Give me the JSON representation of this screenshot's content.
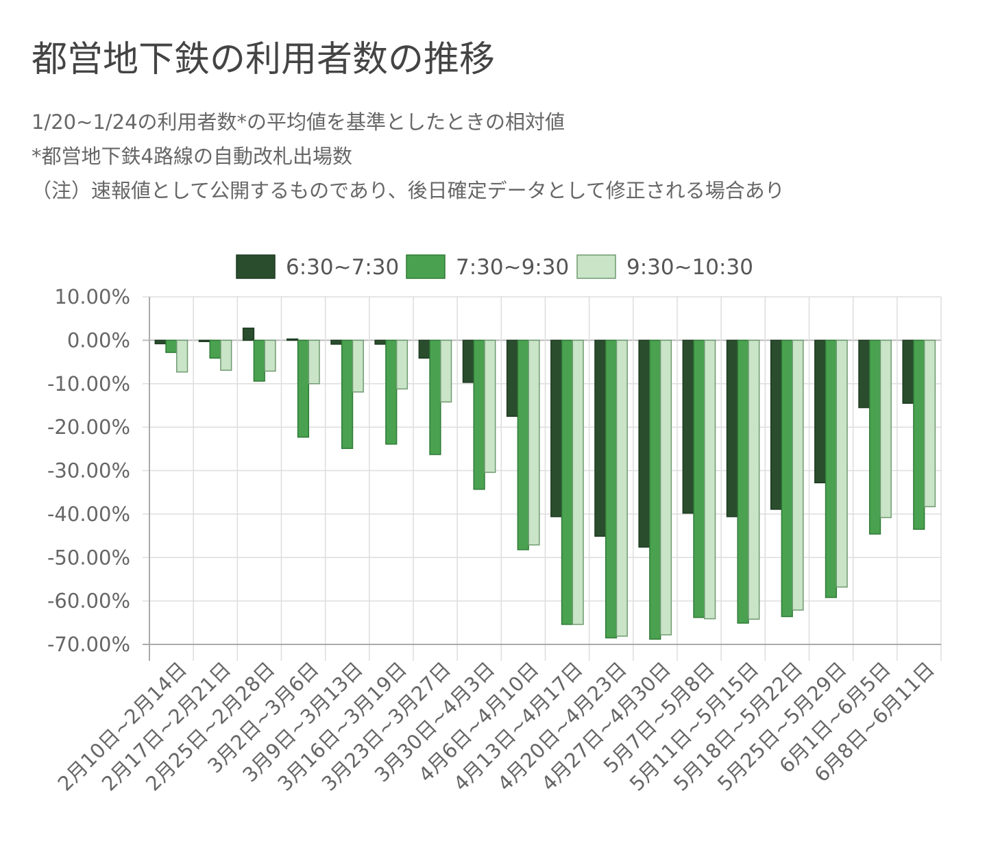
{
  "header": {
    "title": "都営地下鉄の利用者数の推移",
    "notes": [
      "1/20~1/24の利用者数*の平均値を基準としたときの相対値",
      "*都営地下鉄4路線の自動改札出場数",
      "（注）速報値として公開するものであり、後日確定データとして修正される場合あり"
    ]
  },
  "colors": {
    "series": [
      "#2a4d2e",
      "#4aa251",
      "#c9e4c7"
    ],
    "stroke": [
      "#1d3a21",
      "#2f7a35",
      "#6e9a6f"
    ],
    "grid": "#dddddd",
    "axis": "#aaaaaa",
    "zero": "#bbbbbb"
  },
  "chart_data": {
    "type": "bar",
    "title": "",
    "ylim": [
      -70,
      10
    ],
    "y_ticks": [
      "10.00%",
      "0.00%",
      "-10.00%",
      "-20.00%",
      "-30.00%",
      "-40.00%",
      "-50.00%",
      "-60.00%",
      "-70.00%"
    ],
    "categories": [
      "2月10日~2月14日",
      "2月17日~2月21日",
      "2月25日~2月28日",
      "3月2日~3月6日",
      "3月9日~3月13日",
      "3月16日~3月19日",
      "3月23日~3月27日",
      "3月30日~4月3日",
      "4月6日~4月10日",
      "4月13日~4月17日",
      "4月20日~4月23日",
      "4月27日~4月30日",
      "5月7日~5月8日",
      "5月11日~5月15日",
      "5月18日~5月22日",
      "5月25日~5月29日",
      "6月1日~6月5日",
      "6月8日~6月11日"
    ],
    "series": [
      {
        "name": "6:30~7:30",
        "values": [
          -0.8,
          -0.3,
          2.8,
          0.3,
          -0.9,
          -0.9,
          -4.1,
          -9.7,
          -17.5,
          -40.6,
          -45.1,
          -47.6,
          -39.8,
          -40.6,
          -38.9,
          -32.8,
          -15.5,
          -14.5
        ]
      },
      {
        "name": "7:30~9:30",
        "values": [
          -2.8,
          -4.1,
          -9.4,
          -22.3,
          -24.9,
          -23.9,
          -26.3,
          -34.3,
          -48.2,
          -65.4,
          -68.5,
          -68.8,
          -63.8,
          -65.1,
          -63.6,
          -59.2,
          -44.6,
          -43.5
        ]
      },
      {
        "name": "9:30~10:30",
        "values": [
          -7.3,
          -6.9,
          -7.1,
          -10.0,
          -11.9,
          -11.2,
          -14.2,
          -30.4,
          -47.1,
          -65.4,
          -68.1,
          -67.8,
          -64.1,
          -64.2,
          -62.1,
          -56.8,
          -40.8,
          -38.3
        ]
      }
    ]
  }
}
